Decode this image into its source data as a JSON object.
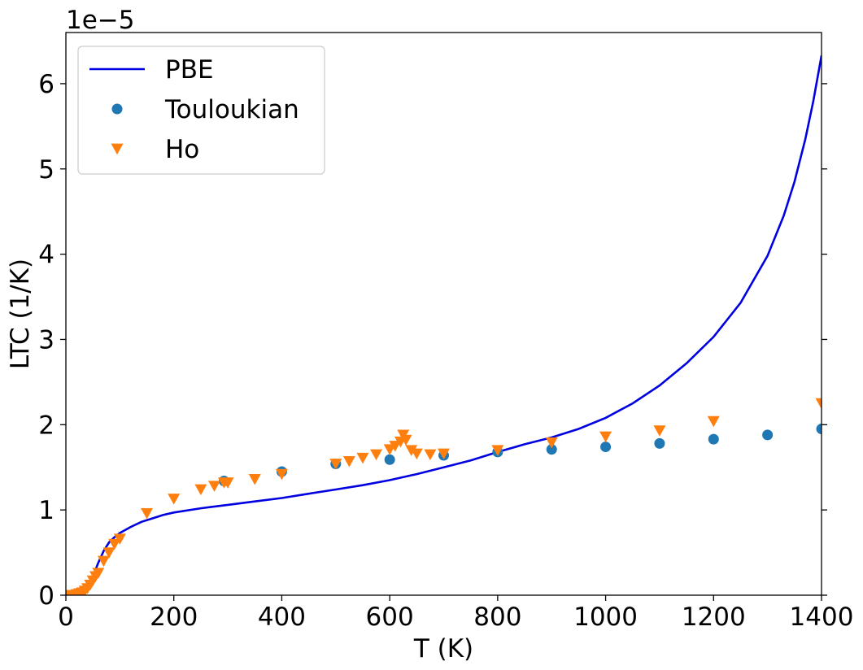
{
  "chart_data": {
    "type": "line",
    "title": "",
    "xlabel": "T (K)",
    "ylabel": "LTC (1/K)",
    "y_offset_label": "1e−5",
    "xlim": [
      0,
      1400
    ],
    "ylim": [
      0,
      6.6
    ],
    "xticks": [
      0,
      200,
      400,
      600,
      800,
      1000,
      1200,
      1400
    ],
    "xtick_labels": [
      "0",
      "200",
      "400",
      "600",
      "800",
      "1000",
      "1200",
      "1400"
    ],
    "yticks": [
      0,
      1,
      2,
      3,
      4,
      5,
      6
    ],
    "ytick_labels": [
      "0",
      "1",
      "2",
      "3",
      "4",
      "5",
      "6"
    ],
    "grid": false,
    "legend_position": "upper-left",
    "series": [
      {
        "name": "PBE",
        "kind": "line",
        "color": "#0000e0",
        "x": [
          30,
          40,
          50,
          60,
          70,
          80,
          90,
          100,
          120,
          140,
          160,
          180,
          200,
          250,
          300,
          350,
          400,
          450,
          500,
          550,
          600,
          650,
          700,
          750,
          800,
          850,
          900,
          950,
          1000,
          1050,
          1100,
          1150,
          1200,
          1250,
          1300,
          1330,
          1350,
          1370,
          1385,
          1400
        ],
        "y": [
          0.0,
          0.08,
          0.22,
          0.38,
          0.52,
          0.62,
          0.68,
          0.73,
          0.8,
          0.86,
          0.9,
          0.94,
          0.97,
          1.02,
          1.06,
          1.1,
          1.14,
          1.19,
          1.24,
          1.29,
          1.35,
          1.42,
          1.5,
          1.58,
          1.68,
          1.77,
          1.85,
          1.95,
          2.08,
          2.25,
          2.46,
          2.72,
          3.03,
          3.43,
          3.98,
          4.45,
          4.85,
          5.35,
          5.8,
          6.33
        ]
      },
      {
        "name": "Touloukian",
        "kind": "scatter",
        "marker": "circle",
        "color": "#1f77b4",
        "x": [
          293,
          400,
          500,
          600,
          700,
          800,
          900,
          1000,
          1100,
          1200,
          1300,
          1400
        ],
        "y": [
          1.34,
          1.45,
          1.54,
          1.59,
          1.64,
          1.68,
          1.71,
          1.74,
          1.78,
          1.83,
          1.88,
          1.95
        ]
      },
      {
        "name": "Ho",
        "kind": "scatter",
        "marker": "triangle-down",
        "color": "#ff7f0e",
        "x": [
          5,
          10,
          15,
          20,
          25,
          30,
          35,
          40,
          45,
          50,
          55,
          60,
          70,
          80,
          90,
          100,
          150,
          200,
          250,
          275,
          293,
          300,
          350,
          400,
          500,
          525,
          550,
          575,
          600,
          610,
          620,
          625,
          630,
          640,
          650,
          675,
          700,
          800,
          900,
          1000,
          1100,
          1200,
          1400
        ],
        "y": [
          0.0,
          0.0,
          0.0,
          0.01,
          0.02,
          0.03,
          0.05,
          0.08,
          0.12,
          0.17,
          0.22,
          0.26,
          0.4,
          0.5,
          0.6,
          0.66,
          0.96,
          1.13,
          1.24,
          1.28,
          1.32,
          1.32,
          1.36,
          1.42,
          1.54,
          1.57,
          1.61,
          1.65,
          1.71,
          1.75,
          1.8,
          1.88,
          1.82,
          1.7,
          1.66,
          1.65,
          1.66,
          1.7,
          1.79,
          1.86,
          1.93,
          2.04,
          2.25
        ]
      }
    ]
  }
}
